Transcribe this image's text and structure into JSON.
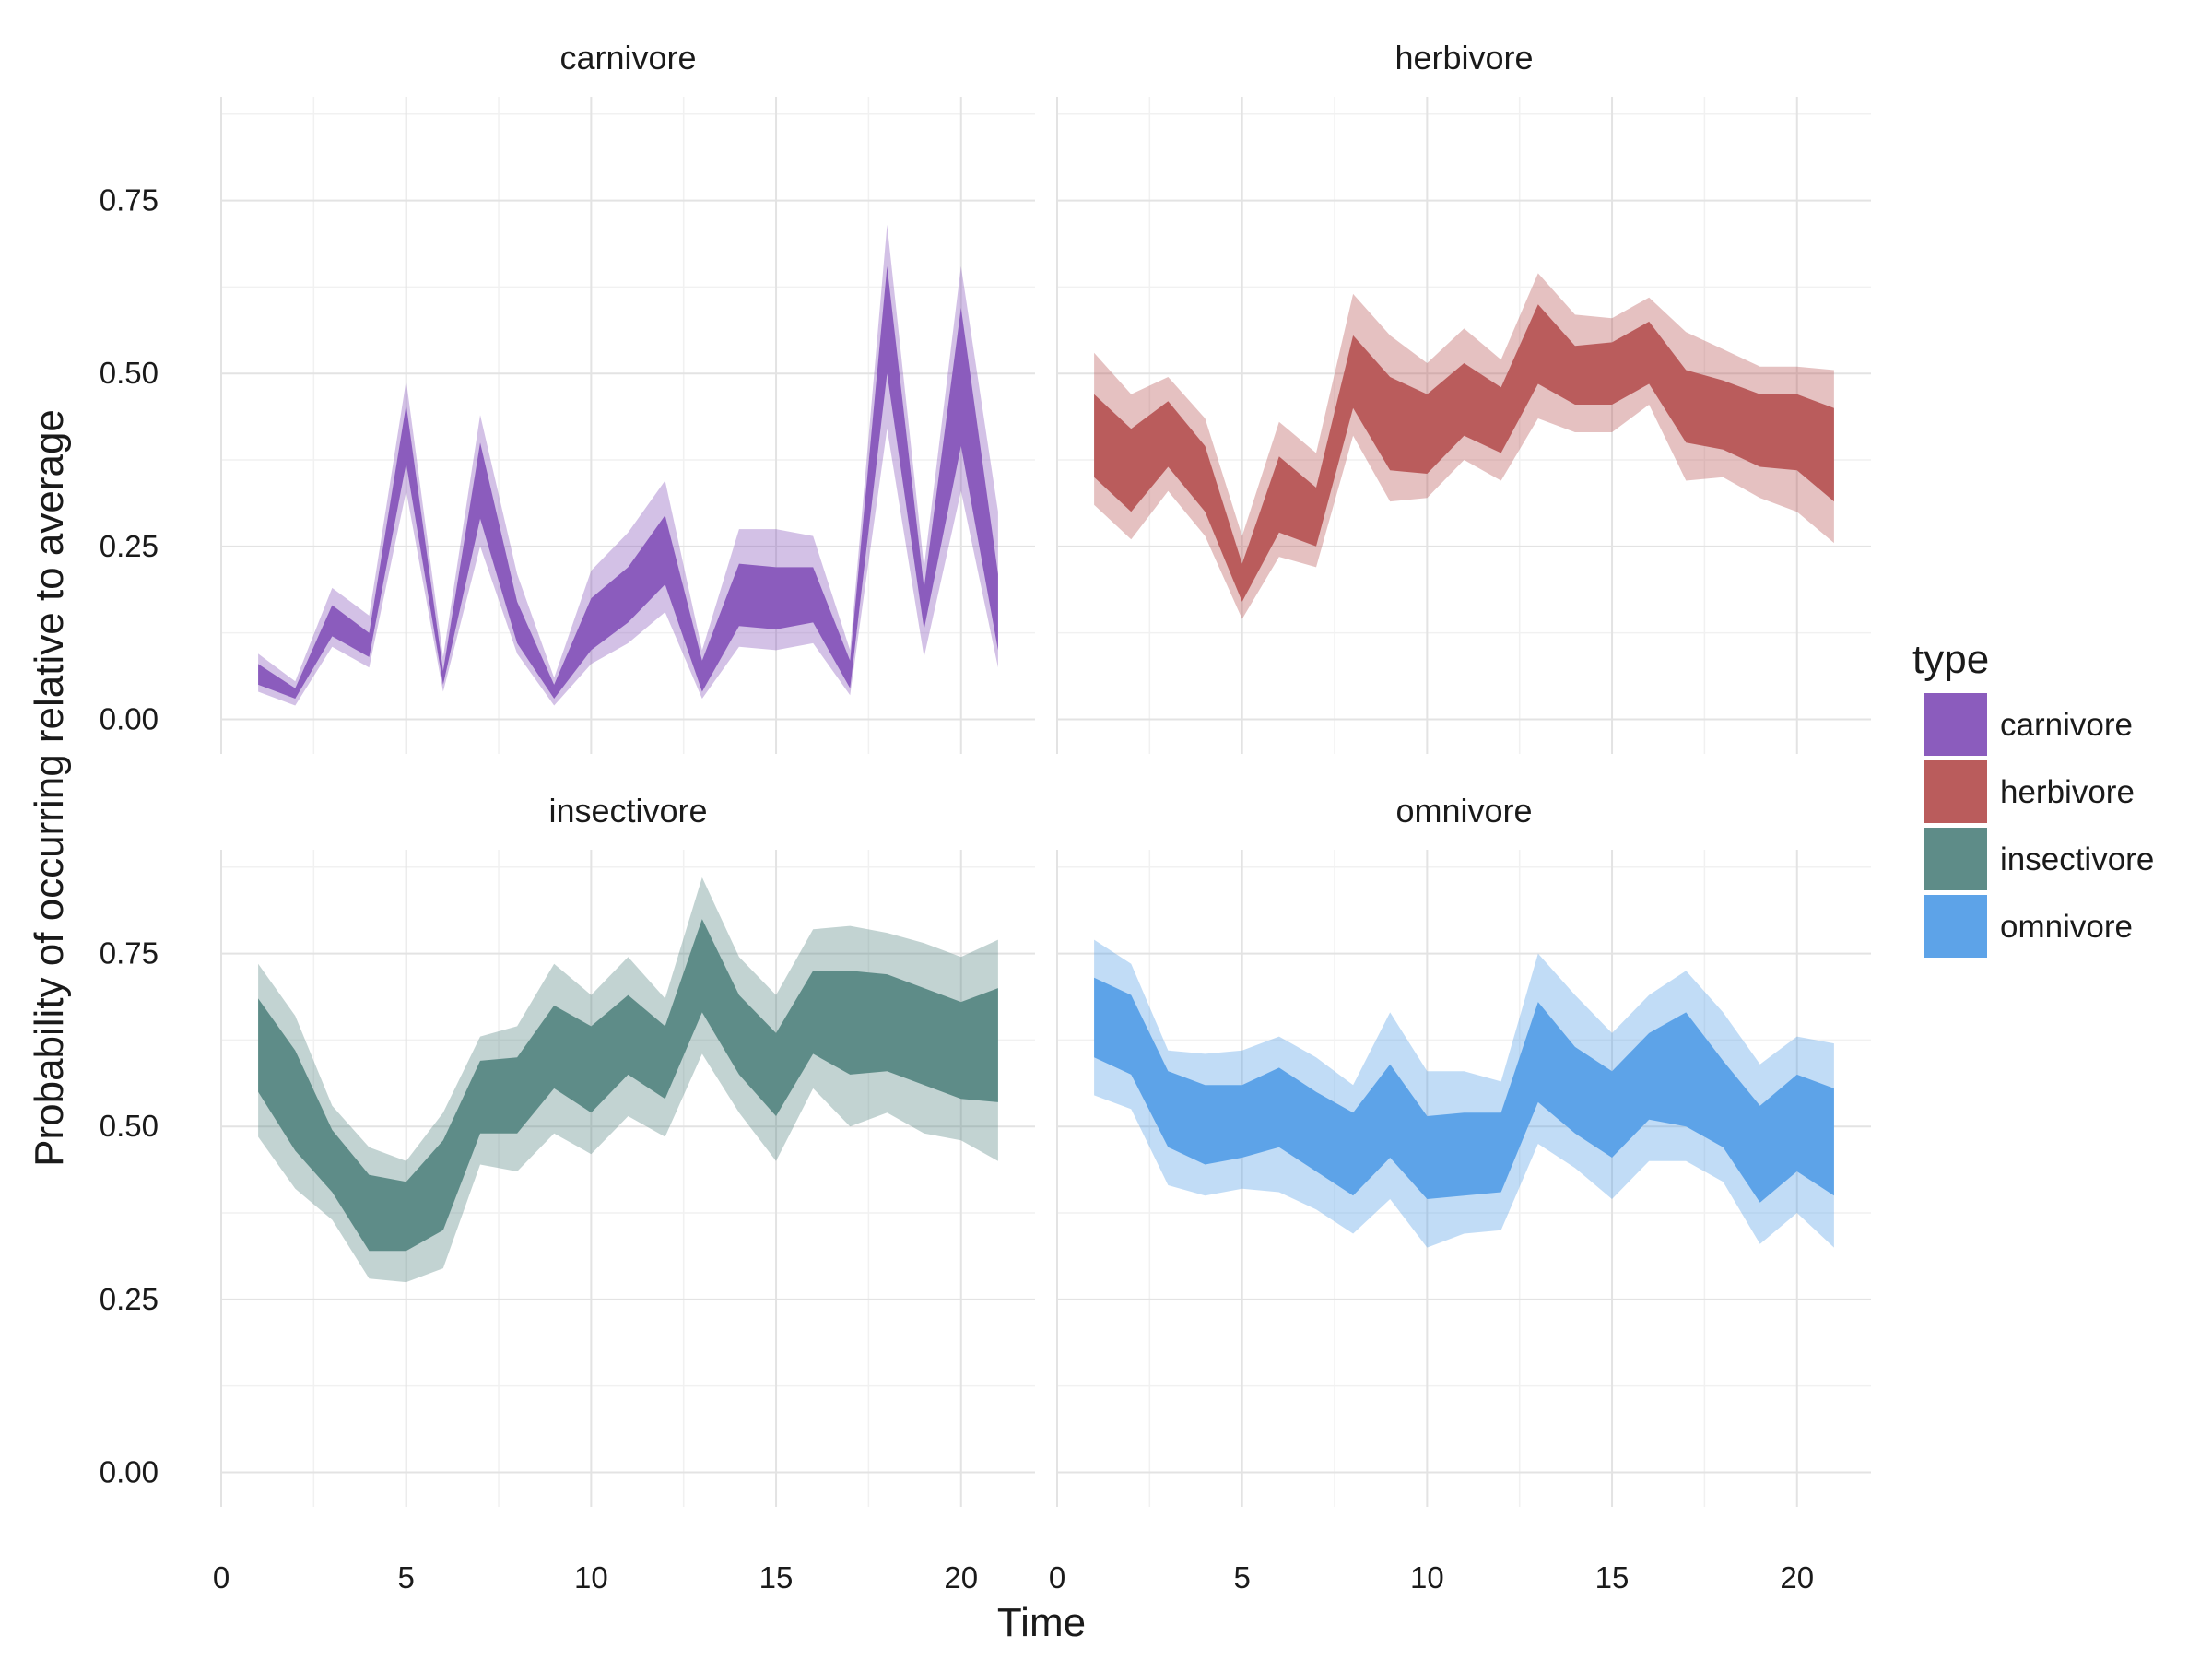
{
  "chart_data": {
    "type": "area",
    "xlabel": "Time",
    "ylabel": "Probability of occurring relative to average",
    "xlim": [
      0,
      22
    ],
    "ylim": [
      -0.05,
      0.9
    ],
    "xticks": [
      0,
      5,
      10,
      15,
      20
    ],
    "yticks": [
      0.0,
      0.25,
      0.5,
      0.75
    ],
    "ytick_labels": [
      "0.00",
      "0.25",
      "0.50",
      "0.75"
    ],
    "grid": true,
    "legend": {
      "title": "type",
      "placement": "right",
      "entries": [
        {
          "label": "carnivore",
          "color": "#8b5cbd"
        },
        {
          "label": "herbivore",
          "color": "#ba5c5c"
        },
        {
          "label": "insectivore",
          "color": "#5e8c88"
        },
        {
          "label": "omnivore",
          "color": "#5da3e8"
        }
      ]
    },
    "panels": [
      {
        "title": "carnivore",
        "color": "#8b5cbd",
        "x": [
          1,
          2,
          3,
          4,
          5,
          6,
          7,
          8,
          9,
          10,
          11,
          12,
          13,
          14,
          15,
          16,
          17,
          18,
          19,
          20,
          21
        ],
        "outer_upper": [
          0.095,
          0.055,
          0.19,
          0.15,
          0.49,
          0.09,
          0.44,
          0.21,
          0.06,
          0.215,
          0.27,
          0.345,
          0.1,
          0.275,
          0.275,
          0.265,
          0.1,
          0.715,
          0.22,
          0.655,
          0.3
        ],
        "inner_upper": [
          0.08,
          0.045,
          0.165,
          0.125,
          0.455,
          0.07,
          0.4,
          0.17,
          0.05,
          0.175,
          0.22,
          0.295,
          0.085,
          0.225,
          0.22,
          0.22,
          0.085,
          0.655,
          0.19,
          0.595,
          0.21
        ],
        "inner_lower": [
          0.05,
          0.03,
          0.12,
          0.09,
          0.37,
          0.05,
          0.29,
          0.11,
          0.03,
          0.1,
          0.14,
          0.195,
          0.04,
          0.135,
          0.13,
          0.14,
          0.045,
          0.5,
          0.13,
          0.395,
          0.1
        ],
        "outer_lower": [
          0.04,
          0.02,
          0.105,
          0.075,
          0.33,
          0.04,
          0.25,
          0.095,
          0.02,
          0.08,
          0.11,
          0.155,
          0.03,
          0.105,
          0.1,
          0.11,
          0.035,
          0.42,
          0.09,
          0.33,
          0.075
        ]
      },
      {
        "title": "herbivore",
        "color": "#ba5c5c",
        "x": [
          1,
          2,
          3,
          4,
          5,
          6,
          7,
          8,
          9,
          10,
          11,
          12,
          13,
          14,
          15,
          16,
          17,
          18,
          19,
          20,
          21
        ],
        "outer_upper": [
          0.53,
          0.47,
          0.495,
          0.435,
          0.265,
          0.43,
          0.385,
          0.615,
          0.555,
          0.515,
          0.565,
          0.52,
          0.645,
          0.585,
          0.58,
          0.61,
          0.56,
          0.535,
          0.51,
          0.51,
          0.505
        ],
        "inner_upper": [
          0.47,
          0.42,
          0.46,
          0.395,
          0.225,
          0.38,
          0.335,
          0.555,
          0.495,
          0.47,
          0.515,
          0.48,
          0.6,
          0.54,
          0.545,
          0.575,
          0.505,
          0.49,
          0.47,
          0.47,
          0.45
        ],
        "inner_lower": [
          0.35,
          0.3,
          0.365,
          0.3,
          0.17,
          0.27,
          0.25,
          0.45,
          0.36,
          0.355,
          0.41,
          0.385,
          0.485,
          0.455,
          0.455,
          0.485,
          0.4,
          0.39,
          0.365,
          0.36,
          0.315
        ],
        "outer_lower": [
          0.31,
          0.26,
          0.33,
          0.265,
          0.145,
          0.235,
          0.22,
          0.41,
          0.315,
          0.32,
          0.375,
          0.345,
          0.435,
          0.415,
          0.415,
          0.455,
          0.345,
          0.35,
          0.32,
          0.3,
          0.255
        ]
      },
      {
        "title": "insectivore",
        "color": "#5e8c88",
        "x": [
          1,
          2,
          3,
          4,
          5,
          6,
          7,
          8,
          9,
          10,
          11,
          12,
          13,
          14,
          15,
          16,
          17,
          18,
          19,
          20,
          21
        ],
        "outer_upper": [
          0.735,
          0.66,
          0.53,
          0.47,
          0.45,
          0.52,
          0.63,
          0.645,
          0.735,
          0.69,
          0.745,
          0.685,
          0.86,
          0.745,
          0.69,
          0.785,
          0.79,
          0.78,
          0.765,
          0.745,
          0.77
        ],
        "inner_upper": [
          0.685,
          0.61,
          0.495,
          0.43,
          0.42,
          0.48,
          0.595,
          0.6,
          0.675,
          0.645,
          0.69,
          0.645,
          0.8,
          0.69,
          0.635,
          0.725,
          0.725,
          0.72,
          0.7,
          0.68,
          0.7
        ],
        "inner_lower": [
          0.55,
          0.465,
          0.405,
          0.32,
          0.32,
          0.35,
          0.49,
          0.49,
          0.555,
          0.52,
          0.575,
          0.54,
          0.665,
          0.575,
          0.515,
          0.605,
          0.575,
          0.58,
          0.56,
          0.54,
          0.535
        ],
        "outer_lower": [
          0.485,
          0.41,
          0.365,
          0.28,
          0.275,
          0.295,
          0.445,
          0.435,
          0.49,
          0.46,
          0.515,
          0.485,
          0.605,
          0.52,
          0.45,
          0.555,
          0.5,
          0.52,
          0.49,
          0.48,
          0.45
        ]
      },
      {
        "title": "omnivore",
        "color": "#5da3e8",
        "x": [
          1,
          2,
          3,
          4,
          5,
          6,
          7,
          8,
          9,
          10,
          11,
          12,
          13,
          14,
          15,
          16,
          17,
          18,
          19,
          20,
          21
        ],
        "outer_upper": [
          0.77,
          0.735,
          0.61,
          0.605,
          0.61,
          0.63,
          0.6,
          0.56,
          0.665,
          0.58,
          0.58,
          0.565,
          0.75,
          0.69,
          0.635,
          0.69,
          0.725,
          0.665,
          0.59,
          0.63,
          0.62
        ],
        "inner_upper": [
          0.715,
          0.69,
          0.58,
          0.56,
          0.56,
          0.585,
          0.55,
          0.52,
          0.59,
          0.515,
          0.52,
          0.52,
          0.68,
          0.615,
          0.58,
          0.635,
          0.665,
          0.595,
          0.53,
          0.575,
          0.555
        ],
        "inner_lower": [
          0.6,
          0.575,
          0.47,
          0.445,
          0.455,
          0.47,
          0.435,
          0.4,
          0.455,
          0.395,
          0.4,
          0.405,
          0.535,
          0.49,
          0.455,
          0.51,
          0.5,
          0.47,
          0.39,
          0.435,
          0.4
        ],
        "outer_lower": [
          0.545,
          0.525,
          0.415,
          0.4,
          0.41,
          0.405,
          0.38,
          0.345,
          0.395,
          0.325,
          0.345,
          0.35,
          0.475,
          0.44,
          0.395,
          0.45,
          0.45,
          0.42,
          0.33,
          0.375,
          0.325
        ]
      }
    ]
  }
}
